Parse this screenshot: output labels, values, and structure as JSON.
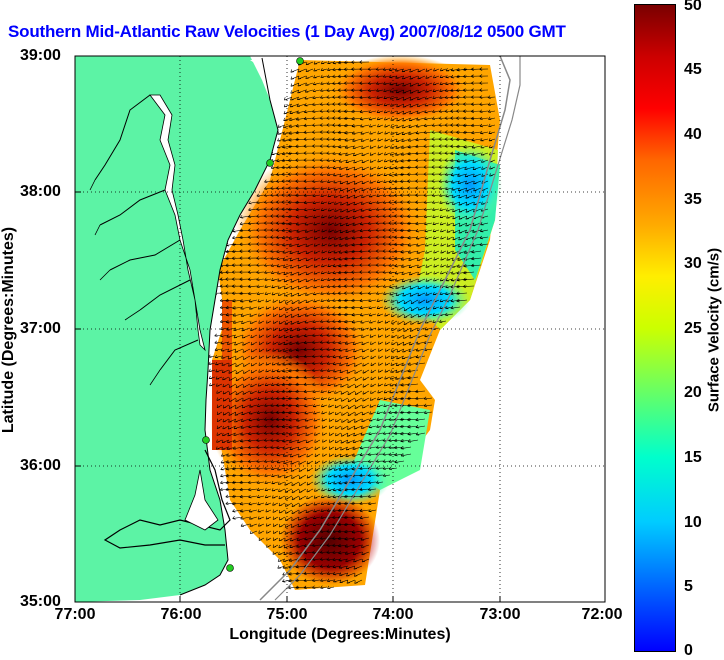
{
  "title": "Southern Mid-Atlantic Raw Velocities (1 Day Avg) 2007/08/12 0500 GMT",
  "x_axis": {
    "label": "Longitude (Degrees:Minutes)",
    "ticks": [
      "77:00",
      "76:00",
      "75:00",
      "74:00",
      "73:00",
      "72:00"
    ]
  },
  "y_axis": {
    "label": "Latitude (Degrees:Minutes)",
    "ticks": [
      "39:00",
      "38:00",
      "37:00",
      "36:00",
      "35:00"
    ]
  },
  "colorbar": {
    "label": "Surface Velocity (cm/s)",
    "ticks": [
      "50",
      "45",
      "40",
      "35",
      "30",
      "25",
      "20",
      "15",
      "10",
      "5",
      "0"
    ],
    "range": [
      0,
      50
    ]
  },
  "colors": {
    "land": "#5cf3a5",
    "ocean": "#ffffff",
    "title": "#0000ff",
    "station": "#22cc22",
    "vectors": "#000000"
  },
  "stations": [
    "station-1",
    "station-2",
    "station-3",
    "station-4"
  ]
}
